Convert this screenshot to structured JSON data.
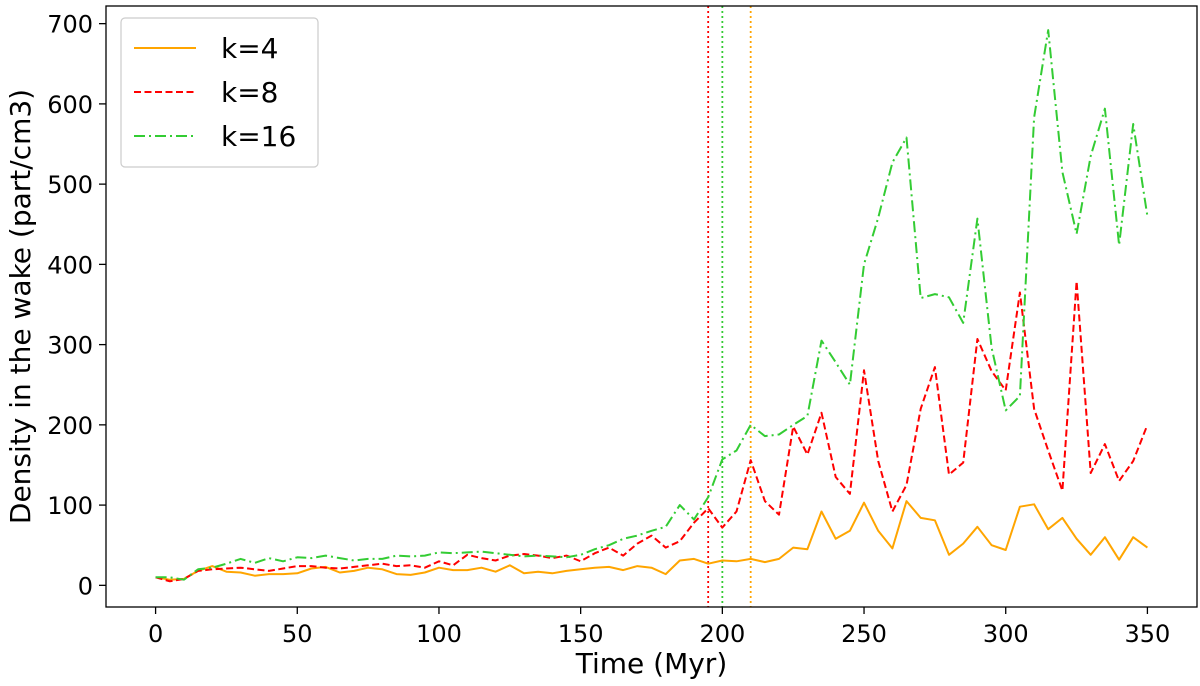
{
  "chart_data": {
    "type": "line",
    "xlabel": "Time (Myr)",
    "ylabel": "Density in the wake (part/cm3)",
    "xlim": [
      -17.5,
      367.5
    ],
    "ylim": [
      -27,
      722
    ],
    "xticks": [
      0,
      50,
      100,
      150,
      200,
      250,
      300,
      350
    ],
    "yticks": [
      0,
      100,
      200,
      300,
      400,
      500,
      600,
      700
    ],
    "x": [
      0,
      5,
      10,
      15,
      20,
      25,
      30,
      35,
      40,
      45,
      50,
      55,
      60,
      65,
      70,
      75,
      80,
      85,
      90,
      95,
      100,
      105,
      110,
      115,
      120,
      125,
      130,
      135,
      140,
      145,
      150,
      155,
      160,
      165,
      170,
      175,
      180,
      185,
      190,
      195,
      200,
      205,
      210,
      215,
      220,
      225,
      230,
      235,
      240,
      245,
      250,
      255,
      260,
      265,
      270,
      275,
      280,
      285,
      290,
      295,
      300,
      305,
      310,
      315,
      320,
      325,
      330,
      335,
      340,
      345,
      350
    ],
    "series": [
      {
        "name": "k=4",
        "color": "#ffa500",
        "style": "solid",
        "values": [
          10,
          7,
          8,
          18,
          24,
          17,
          16,
          12,
          14,
          14,
          15,
          21,
          23,
          16,
          18,
          22,
          20,
          14,
          13,
          16,
          22,
          19,
          19,
          22,
          17,
          25,
          15,
          17,
          15,
          18,
          20,
          22,
          23,
          19,
          24,
          22,
          14,
          31,
          33,
          27,
          31,
          30,
          33,
          29,
          33,
          47,
          45,
          92,
          58,
          68,
          103,
          68,
          46,
          105,
          84,
          81,
          38,
          52,
          73,
          50,
          44,
          98,
          101,
          70,
          84,
          58,
          38,
          60,
          32,
          60,
          47
        ]
      },
      {
        "name": "k=8",
        "color": "#ff0000",
        "style": "dashed",
        "values": [
          10,
          5,
          8,
          18,
          20,
          21,
          22,
          20,
          18,
          21,
          24,
          24,
          22,
          21,
          23,
          25,
          27,
          24,
          25,
          22,
          30,
          25,
          38,
          34,
          31,
          37,
          39,
          37,
          34,
          37,
          30,
          40,
          47,
          37,
          52,
          62,
          47,
          55,
          78,
          96,
          72,
          92,
          156,
          105,
          88,
          198,
          163,
          215,
          135,
          114,
          268,
          155,
          92,
          125,
          220,
          272,
          138,
          153,
          307,
          267,
          243,
          365,
          220,
          168,
          118,
          379,
          140,
          176,
          130,
          155,
          200
        ]
      },
      {
        "name": "k=16",
        "color": "#33cc33",
        "style": "dashdot",
        "values": [
          10,
          10,
          7,
          20,
          22,
          27,
          33,
          28,
          34,
          30,
          35,
          34,
          37,
          34,
          31,
          33,
          33,
          37,
          36,
          37,
          41,
          40,
          41,
          42,
          40,
          38,
          36,
          37,
          36,
          35,
          38,
          45,
          50,
          58,
          62,
          68,
          73,
          100,
          82,
          110,
          157,
          168,
          200,
          186,
          188,
          200,
          211,
          305,
          278,
          250,
          400,
          458,
          527,
          558,
          358,
          363,
          359,
          327,
          457,
          296,
          218,
          236,
          583,
          692,
          515,
          438,
          535,
          594,
          424,
          575,
          460
        ]
      }
    ],
    "vlines": [
      {
        "x": 195,
        "color": "#ff0000"
      },
      {
        "x": 200,
        "color": "#33cc33"
      },
      {
        "x": 210,
        "color": "#ffa500"
      }
    ],
    "legend": "top-left",
    "grid": false
  }
}
